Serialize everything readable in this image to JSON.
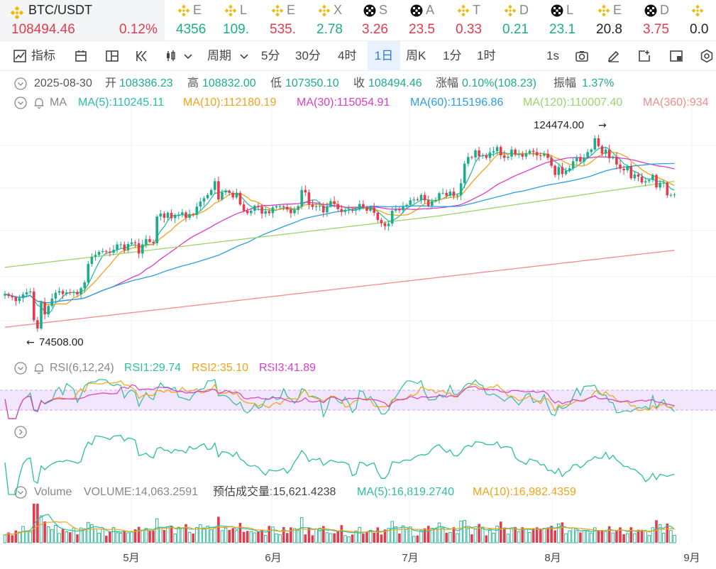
{
  "ticker": {
    "main": {
      "symbol": "BTC/USDT",
      "price": "108494.46",
      "change": "0.12%"
    },
    "minis": [
      {
        "icon": "binance-icon",
        "sym": "E",
        "val": "4356",
        "dir": "up"
      },
      {
        "icon": "binance-icon",
        "sym": "L",
        "val": "109.",
        "dir": "up"
      },
      {
        "icon": "binance-icon",
        "sym": "E",
        "val": "535.",
        "dir": "down"
      },
      {
        "icon": "binance-icon",
        "sym": "X",
        "val": "2.78",
        "dir": "up"
      },
      {
        "icon": "okx-icon",
        "sym": "S",
        "val": "3.26",
        "dir": "down"
      },
      {
        "icon": "okx-icon",
        "sym": "A",
        "val": "23.5",
        "dir": "down"
      },
      {
        "icon": "binance-icon",
        "sym": "T",
        "val": "0.33",
        "dir": "down"
      },
      {
        "icon": "binance-icon",
        "sym": "D",
        "val": "0.21",
        "dir": "up"
      },
      {
        "icon": "okx-icon",
        "sym": "L",
        "val": "23.1",
        "dir": "up"
      },
      {
        "icon": "binance-icon",
        "sym": "E",
        "val": "20.8",
        "dir": "neutral"
      },
      {
        "icon": "okx-icon",
        "sym": "D",
        "val": "3.75",
        "dir": "down"
      },
      {
        "icon": "binance-icon",
        "sym": "",
        "val": "0.0",
        "dir": "neutral"
      }
    ]
  },
  "toolbar": {
    "indicator": "指标",
    "period": "周期",
    "intervals": [
      "5分",
      "30分",
      "4时",
      "1日",
      "周K",
      "1分",
      "1时"
    ],
    "active_interval": "1日",
    "refresh": "1s"
  },
  "ohlc": {
    "date": "2025-08-30",
    "open_label": "开",
    "open": "108386.23",
    "high_label": "高",
    "high": "108832.00",
    "low_label": "低",
    "low": "107350.10",
    "close_label": "收",
    "close": "108494.46",
    "change_label": "涨幅",
    "change": "0.10%(108.23)",
    "amp_label": "振幅",
    "amp": "1.37%"
  },
  "ma_legend": {
    "title": "MA",
    "items": [
      {
        "text": "MA(5):110245.11",
        "color": "#2bbf9e"
      },
      {
        "text": "MA(10):112180.19",
        "color": "#f0a417"
      },
      {
        "text": "MA(30):115054.91",
        "color": "#d83ec4"
      },
      {
        "text": "MA(60):115196.86",
        "color": "#2c9fe0"
      },
      {
        "text": "MA(120):110007.40",
        "color": "#9ed46b"
      },
      {
        "text": "MA(360):934",
        "color": "#f08c8c"
      }
    ]
  },
  "price_annotations": {
    "high": "124474.00",
    "low": "74508.00"
  },
  "rsi_legend": {
    "title": "RSI(6,12,24)",
    "items": [
      {
        "text": "RSI1:29.74",
        "color": "#2bbf9e"
      },
      {
        "text": "RSI2:35.10",
        "color": "#f0a417"
      },
      {
        "text": "RSI3:41.89",
        "color": "#d83ec4"
      }
    ]
  },
  "volume_legend": {
    "title": "Volume",
    "volume": "VOLUME:14,063.2591",
    "estimate": "预估成交量:15,621.4238",
    "ma5": "MA(5):16,819.2740",
    "ma10": "MA(10):16,982.4359"
  },
  "x_axis": [
    "5月",
    "6月",
    "7月",
    "8月",
    "9月"
  ],
  "colors": {
    "up": "#1cae8c",
    "down": "#e63a4d",
    "accent": "#2a7be4"
  },
  "chart_data": {
    "type": "candlestick",
    "close": [
      84600,
      84100,
      83800,
      82900,
      83600,
      84500,
      85000,
      85200,
      78300,
      76300,
      82600,
      79700,
      81700,
      83500,
      84900,
      85300,
      84600,
      85000,
      84900,
      85100,
      84500,
      86000,
      87400,
      91800,
      93500,
      94000,
      94700,
      94900,
      94800,
      94500,
      95200,
      96500,
      96500,
      95100,
      96600,
      97000,
      96800,
      94300,
      96500,
      97800,
      97100,
      96800,
      103200,
      103900,
      102900,
      104100,
      102800,
      103600,
      103700,
      104200,
      102900,
      103800,
      103600,
      105600,
      106800,
      107600,
      108400,
      109600,
      111700,
      107300,
      109000,
      109400,
      108900,
      107800,
      108900,
      106100,
      104600,
      104000,
      104600,
      105800,
      105600,
      103900,
      104500,
      104000,
      105400,
      105700,
      105700,
      105500,
      104900,
      104000,
      104800,
      105700,
      109600,
      109000,
      106100,
      105500,
      105700,
      105800,
      104200,
      105700,
      106900,
      106200,
      105000,
      104300,
      104800,
      104800,
      104700,
      104900,
      106200,
      105400,
      104600,
      105300,
      104100,
      102400,
      101600,
      100900,
      101500,
      104600,
      104900,
      104700,
      105600,
      106000,
      107100,
      107300,
      107200,
      108400,
      107100,
      105800,
      106900,
      107200,
      108800,
      108900,
      108200,
      109200,
      108100,
      108300,
      111200,
      115900,
      117500,
      117400,
      119100,
      117700,
      117900,
      117300,
      118600,
      118900,
      119900,
      117900,
      117300,
      117600,
      119300,
      118200,
      118200,
      117600,
      118400,
      119000,
      118700,
      117900,
      117800,
      118300,
      117300,
      115400,
      113200,
      115100,
      113400,
      114200,
      114800,
      116500,
      117500,
      116400,
      117400,
      118700,
      119300,
      122000,
      120100,
      118300,
      119300,
      117200,
      117500,
      115700,
      114700,
      114300,
      115300,
      112400,
      113300,
      112800,
      111400,
      111700,
      112000,
      113200,
      110200,
      111300,
      111300,
      108300,
      108400,
      108500
    ],
    "title": "",
    "xlabel": "",
    "ylabel": ""
  }
}
